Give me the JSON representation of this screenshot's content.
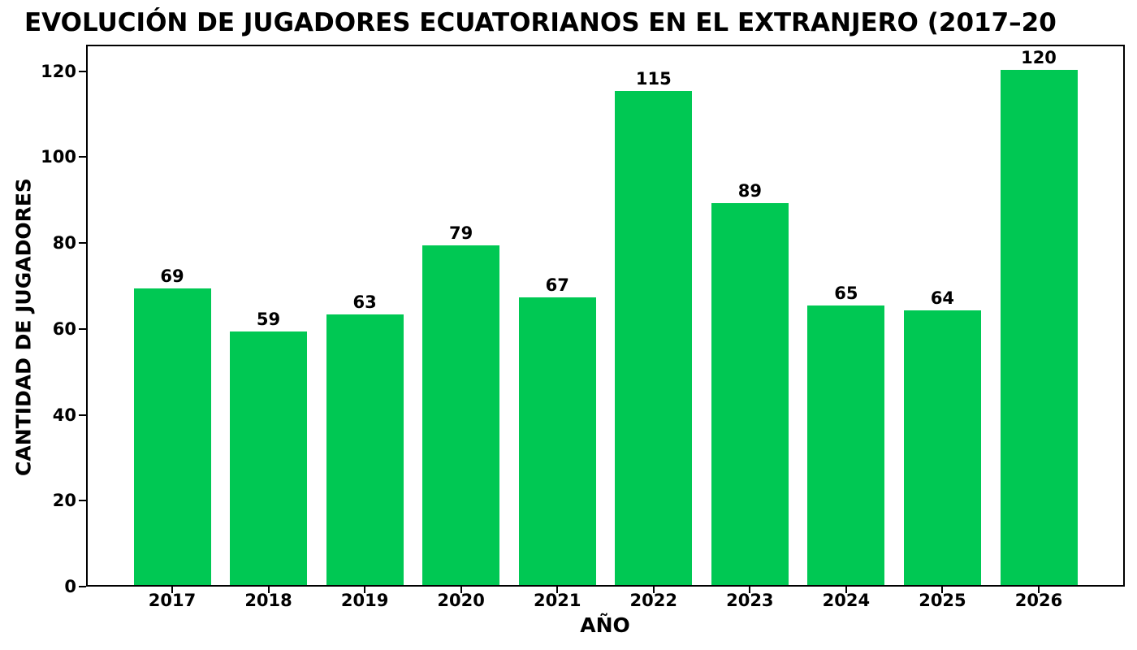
{
  "chart_data": {
    "type": "bar",
    "title": "EVOLUCIÓN DE JUGADORES ECUATORIANOS EN EL EXTRANJERO (2017–20",
    "xlabel": "AÑO",
    "ylabel": "CANTIDAD DE JUGADORES",
    "categories": [
      "2017",
      "2018",
      "2019",
      "2020",
      "2021",
      "2022",
      "2023",
      "2024",
      "2025",
      "2026"
    ],
    "values": [
      69,
      59,
      63,
      79,
      67,
      115,
      89,
      65,
      64,
      120
    ],
    "yticks": [
      0,
      20,
      40,
      60,
      80,
      100,
      120
    ],
    "ylim": [
      0,
      126.2
    ],
    "bar_color": "#00C853",
    "text_color": "#000000",
    "grid": false,
    "legend": null,
    "value_labels_shown": true
  }
}
